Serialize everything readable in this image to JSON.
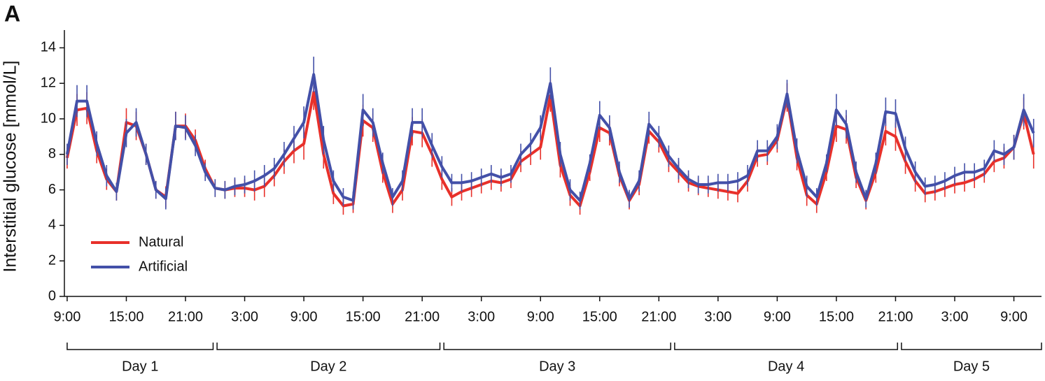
{
  "chart_data": {
    "type": "line",
    "panel_label": "A",
    "y_label": "Interstitial glucose [mmol/L]",
    "x": [
      9,
      10,
      11,
      12,
      13,
      14,
      15,
      16,
      17,
      18,
      19,
      20,
      21,
      22,
      23,
      24,
      25,
      26,
      27,
      28,
      29,
      30,
      31,
      32,
      33,
      34,
      35,
      36,
      37,
      38,
      39,
      40,
      41,
      42,
      43,
      44,
      45,
      46,
      47,
      48,
      49,
      50,
      51,
      52,
      53,
      54,
      55,
      56,
      57,
      58,
      59,
      60,
      61,
      62,
      63,
      64,
      65,
      66,
      67,
      68,
      69,
      70,
      71,
      72,
      73,
      74,
      75,
      76,
      77,
      78,
      79,
      80,
      81,
      82,
      83,
      84,
      85,
      86,
      87,
      88,
      89,
      90,
      91,
      92,
      93,
      94,
      95,
      96,
      97,
      98,
      99,
      100,
      101,
      102,
      103,
      104,
      105,
      106,
      107
    ],
    "series": [
      {
        "name": "Natural",
        "color": "#e8302a",
        "values": [
          7.8,
          10.5,
          10.6,
          8.2,
          6.6,
          5.9,
          9.8,
          9.6,
          8.0,
          6.0,
          5.6,
          9.6,
          9.6,
          8.8,
          7.2,
          6.1,
          6.0,
          6.1,
          6.1,
          6.0,
          6.2,
          6.8,
          7.6,
          8.2,
          8.6,
          11.5,
          8.0,
          5.8,
          5.1,
          5.2,
          9.9,
          9.5,
          7.0,
          5.2,
          6.0,
          9.3,
          9.2,
          8.0,
          6.6,
          5.6,
          5.9,
          6.1,
          6.3,
          6.5,
          6.4,
          6.6,
          7.6,
          8.0,
          8.4,
          11.3,
          7.4,
          5.7,
          5.1,
          7.0,
          9.5,
          9.2,
          6.8,
          5.4,
          6.3,
          9.3,
          8.7,
          7.6,
          7.0,
          6.4,
          6.2,
          6.1,
          6.0,
          5.9,
          5.8,
          6.5,
          7.9,
          8.0,
          8.8,
          11.2,
          7.8,
          5.7,
          5.2,
          7.0,
          9.6,
          9.4,
          6.7,
          5.4,
          7.0,
          9.3,
          9.0,
          7.6,
          6.5,
          5.8,
          5.9,
          6.1,
          6.3,
          6.4,
          6.6,
          6.9,
          7.6,
          7.8,
          8.4,
          10.3,
          8.0
        ],
        "errors": [
          0.6,
          0.9,
          0.9,
          0.7,
          0.6,
          0.5,
          0.8,
          0.8,
          0.6,
          0.5,
          0.6,
          0.8,
          0.7,
          0.6,
          0.5,
          0.5,
          0.5,
          0.5,
          0.5,
          0.6,
          0.6,
          0.6,
          0.7,
          0.7,
          0.9,
          1.0,
          0.8,
          0.6,
          0.5,
          0.5,
          0.9,
          0.8,
          0.6,
          0.5,
          0.6,
          0.8,
          0.8,
          0.7,
          0.6,
          0.5,
          0.5,
          0.5,
          0.5,
          0.5,
          0.5,
          0.5,
          0.6,
          0.6,
          0.7,
          0.9,
          0.7,
          0.6,
          0.5,
          0.5,
          0.8,
          0.7,
          0.6,
          0.5,
          0.6,
          0.7,
          0.6,
          0.6,
          0.6,
          0.5,
          0.5,
          0.5,
          0.5,
          0.5,
          0.5,
          0.6,
          0.6,
          0.6,
          0.7,
          0.8,
          0.7,
          0.6,
          0.5,
          0.5,
          0.9,
          0.8,
          0.6,
          0.5,
          0.6,
          0.8,
          0.8,
          0.7,
          0.6,
          0.5,
          0.5,
          0.5,
          0.5,
          0.5,
          0.5,
          0.5,
          0.6,
          0.6,
          0.7,
          0.9,
          0.8
        ]
      },
      {
        "name": "Artificial",
        "color": "#4350a8",
        "values": [
          8.0,
          11.0,
          11.0,
          8.6,
          6.8,
          5.9,
          9.2,
          9.8,
          8.0,
          6.0,
          5.5,
          9.6,
          9.5,
          8.5,
          7.0,
          6.1,
          6.0,
          6.2,
          6.3,
          6.5,
          6.8,
          7.2,
          8.0,
          8.9,
          9.8,
          12.5,
          8.8,
          6.5,
          5.6,
          5.4,
          10.5,
          9.8,
          7.5,
          5.6,
          6.5,
          9.8,
          9.8,
          8.5,
          7.3,
          6.4,
          6.4,
          6.5,
          6.7,
          6.9,
          6.7,
          6.9,
          8.0,
          8.6,
          9.5,
          12.0,
          8.0,
          6.0,
          5.4,
          7.5,
          10.2,
          9.5,
          7.0,
          5.5,
          6.5,
          9.7,
          9.0,
          7.9,
          7.2,
          6.6,
          6.3,
          6.3,
          6.4,
          6.4,
          6.5,
          6.8,
          8.2,
          8.2,
          9.0,
          11.4,
          8.2,
          6.2,
          5.6,
          7.5,
          10.5,
          9.7,
          7.0,
          5.5,
          7.5,
          10.4,
          10.3,
          8.3,
          7.0,
          6.2,
          6.3,
          6.5,
          6.8,
          7.0,
          7.0,
          7.2,
          8.2,
          8.0,
          8.4,
          10.5,
          9.2
        ],
        "errors": [
          0.6,
          0.9,
          0.9,
          0.7,
          0.6,
          0.5,
          0.8,
          0.8,
          0.6,
          0.5,
          0.6,
          0.8,
          0.7,
          0.6,
          0.5,
          0.5,
          0.5,
          0.5,
          0.5,
          0.6,
          0.6,
          0.6,
          0.7,
          0.7,
          0.9,
          1.0,
          0.8,
          0.6,
          0.5,
          0.5,
          0.9,
          0.8,
          0.6,
          0.5,
          0.6,
          0.8,
          0.8,
          0.7,
          0.6,
          0.5,
          0.5,
          0.5,
          0.5,
          0.5,
          0.5,
          0.5,
          0.6,
          0.6,
          0.7,
          0.9,
          0.7,
          0.6,
          0.5,
          0.5,
          0.8,
          0.7,
          0.6,
          0.5,
          0.6,
          0.7,
          0.6,
          0.6,
          0.6,
          0.5,
          0.5,
          0.5,
          0.5,
          0.5,
          0.5,
          0.6,
          0.6,
          0.6,
          0.7,
          0.8,
          0.7,
          0.6,
          0.5,
          0.5,
          0.9,
          0.8,
          0.6,
          0.5,
          0.6,
          0.8,
          0.8,
          0.7,
          0.6,
          0.5,
          0.5,
          0.5,
          0.5,
          0.5,
          0.5,
          0.5,
          0.6,
          0.6,
          0.7,
          0.9,
          0.8
        ]
      }
    ],
    "xlim": [
      8.72,
      107.8
    ],
    "xticks": [
      {
        "value": 9,
        "label": "9:00"
      },
      {
        "value": 15,
        "label": "15:00"
      },
      {
        "value": 21,
        "label": "21:00"
      },
      {
        "value": 27,
        "label": "3:00"
      },
      {
        "value": 33,
        "label": "9:00"
      },
      {
        "value": 39,
        "label": "15:00"
      },
      {
        "value": 45,
        "label": "21:00"
      },
      {
        "value": 51,
        "label": "3:00"
      },
      {
        "value": 57,
        "label": "9:00"
      },
      {
        "value": 63,
        "label": "15:00"
      },
      {
        "value": 69,
        "label": "21:00"
      },
      {
        "value": 75,
        "label": "3:00"
      },
      {
        "value": 81,
        "label": "9:00"
      },
      {
        "value": 87,
        "label": "15:00"
      },
      {
        "value": 93,
        "label": "21:00"
      },
      {
        "value": 99,
        "label": "3:00"
      },
      {
        "value": 105,
        "label": "9:00"
      }
    ],
    "ylim": [
      0,
      15
    ],
    "yticks": [
      0,
      2,
      4,
      6,
      8,
      10,
      12,
      14
    ],
    "day_brackets": [
      {
        "label": "Day 1",
        "start": 9,
        "end": 23.8
      },
      {
        "label": "Day 2",
        "start": 24.2,
        "end": 46.8
      },
      {
        "label": "Day 3",
        "start": 47.2,
        "end": 70.2
      },
      {
        "label": "Day 4",
        "start": 70.6,
        "end": 93.2
      },
      {
        "label": "Day 5",
        "start": 93.6,
        "end": 107.8
      }
    ]
  }
}
